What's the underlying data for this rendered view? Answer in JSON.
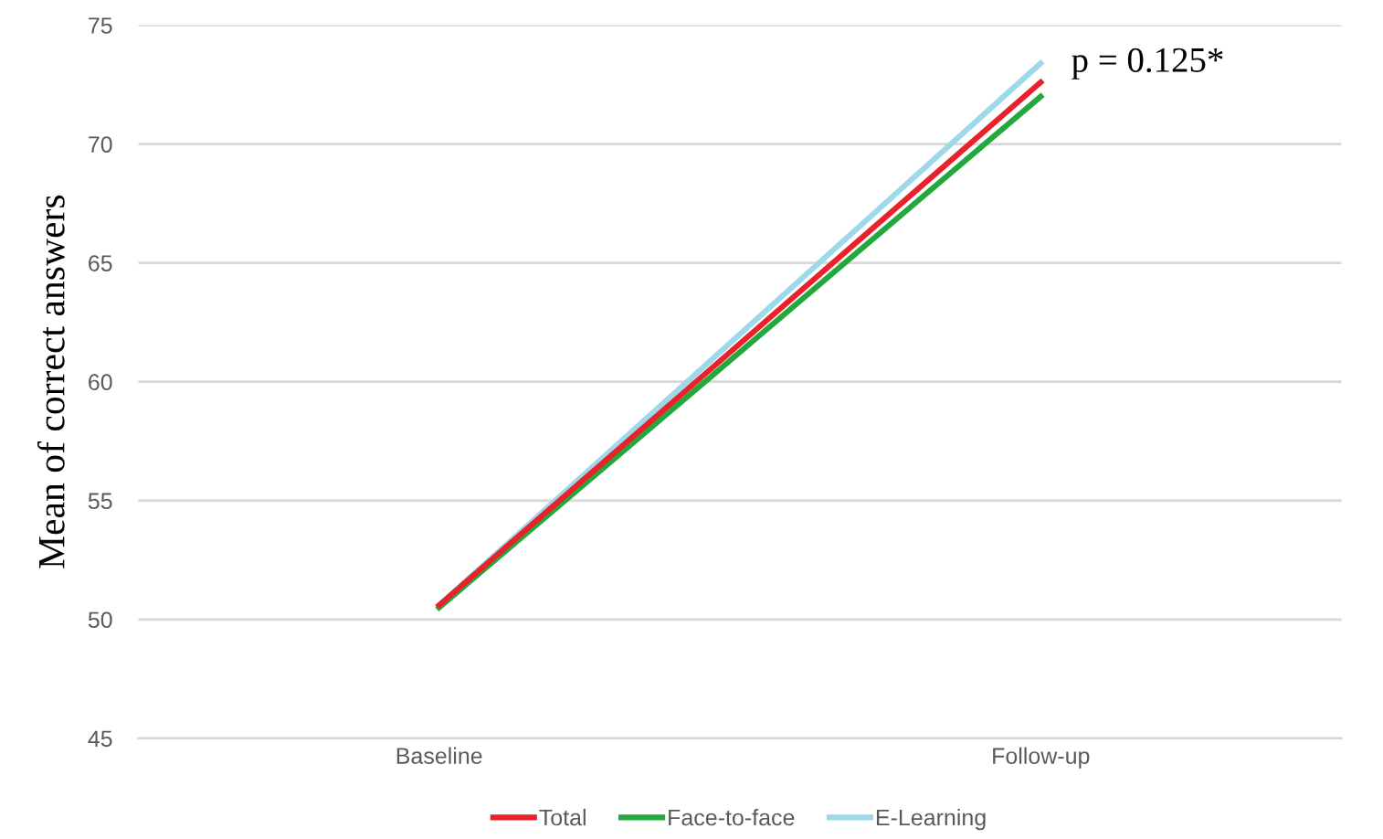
{
  "chart_data": {
    "type": "line",
    "ylabel": "Mean of correct answers",
    "categories": [
      "Baseline",
      "Follow-up"
    ],
    "series": [
      {
        "name": "Total",
        "color": "#e8212b",
        "values": [
          50.6,
          72.6
        ]
      },
      {
        "name": "Face-to-face",
        "color": "#23a83d",
        "values": [
          50.5,
          72.0
        ]
      },
      {
        "name": "E-Learning",
        "color": "#9dd9ea",
        "values": [
          50.6,
          73.4
        ]
      }
    ],
    "ylim": [
      45,
      75
    ],
    "yticks": [
      45,
      50,
      55,
      60,
      65,
      70,
      75
    ],
    "grid": "y",
    "legend": "bottom",
    "marker": "none",
    "line_style": "solid",
    "annotations": [
      {
        "text": "p = 0.125*",
        "x": "Follow-up",
        "y": 73.4
      }
    ]
  }
}
